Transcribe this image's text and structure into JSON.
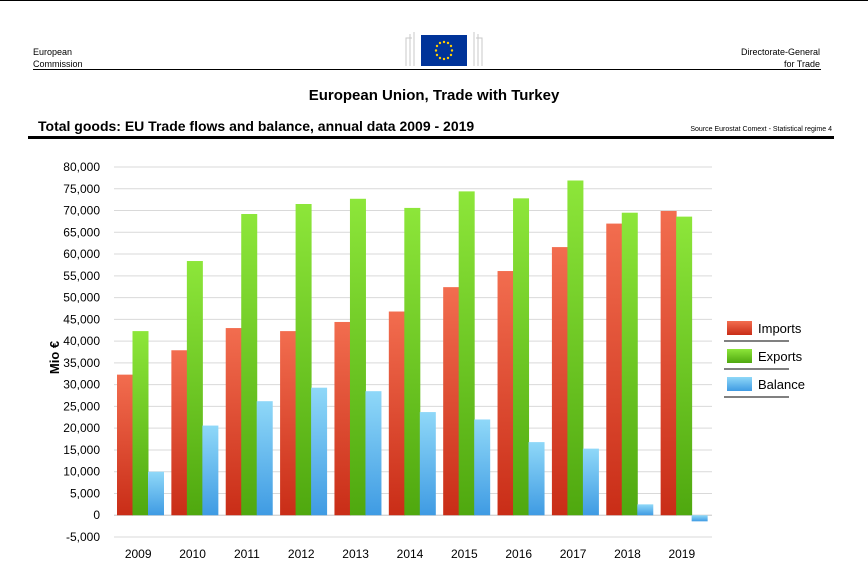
{
  "header": {
    "org_line1": "European",
    "org_line2": "Commission",
    "dg_line1": "Directorate-General",
    "dg_line2": "for Trade",
    "logo_icon": "eu-flag-logo-icon"
  },
  "title": "European Union, Trade with Turkey",
  "subtitle": "Total goods: EU Trade flows and balance, annual data 2009 - 2019",
  "source": "Source Eurostat Comext  - Statistical regime 4",
  "colors": {
    "imports": "#e0452c",
    "exports": "#6cc21e",
    "balance": "#5fbfee",
    "grid": "#d9d9d9"
  },
  "chart_data": {
    "type": "bar",
    "categories": [
      "2009",
      "2010",
      "2011",
      "2012",
      "2013",
      "2014",
      "2015",
      "2016",
      "2017",
      "2018",
      "2019"
    ],
    "series": [
      {
        "name": "Imports",
        "values": [
          32300,
          37900,
          43000,
          42300,
          44400,
          46800,
          52400,
          56100,
          61600,
          67000,
          69900
        ]
      },
      {
        "name": "Exports",
        "values": [
          42300,
          58400,
          69200,
          71500,
          72700,
          70600,
          74400,
          72800,
          76900,
          69500,
          68600
        ]
      },
      {
        "name": "Balance",
        "values": [
          10000,
          20600,
          26200,
          29300,
          28500,
          23700,
          22000,
          16800,
          15300,
          2500,
          -1400
        ]
      }
    ],
    "ylabel": "Mio €",
    "ylim": [
      -5000,
      80000
    ],
    "yticks": [
      80000,
      75000,
      70000,
      65000,
      60000,
      55000,
      50000,
      45000,
      40000,
      35000,
      30000,
      25000,
      20000,
      15000,
      10000,
      5000,
      0,
      -5000
    ],
    "ytick_labels": [
      "80,000",
      "75,000",
      "70,000",
      "65,000",
      "60,000",
      "55,000",
      "50,000",
      "45,000",
      "40,000",
      "35,000",
      "30,000",
      "25,000",
      "20,000",
      "15,000",
      "10,000",
      "5,000",
      "0",
      "-5,000"
    ],
    "grid": true,
    "legend": "right"
  }
}
